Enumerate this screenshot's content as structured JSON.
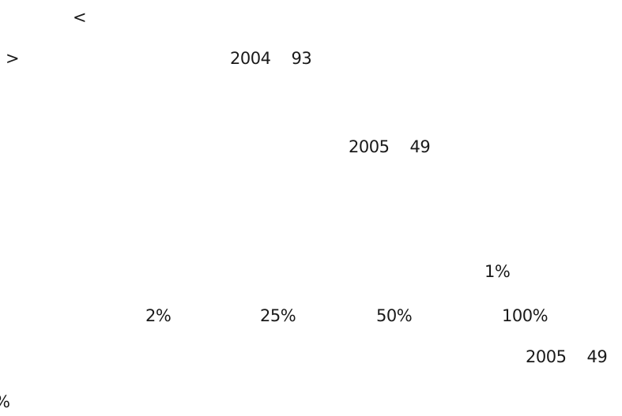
{
  "fragments": {
    "lt": "<",
    "gt": ">",
    "year_a": "2004",
    "value_a": "93",
    "year_b": "2005",
    "value_b": "49",
    "pct_1": "1%",
    "pct_2": "2%",
    "pct_25": "25%",
    "pct_50": "50%",
    "pct_100": "100%",
    "year_c": "2005",
    "value_c": "49",
    "pct_edge": "%"
  }
}
